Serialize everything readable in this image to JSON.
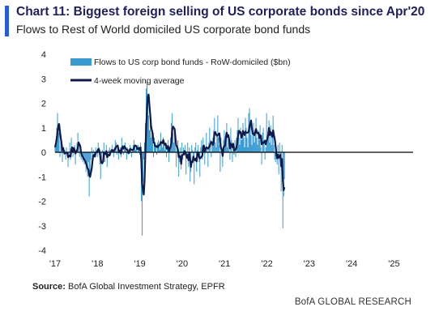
{
  "colors": {
    "accent": "#2a5bd7",
    "bar": "#3a9bd1",
    "line": "#0f1a4a",
    "axis": "#000000"
  },
  "header": {
    "title": "Chart 11: Biggest foreign selling of US corporate bonds since Apr'20",
    "subtitle": "Flows to Rest of World domiciled US corporate bond funds"
  },
  "footer": {
    "source_label": "Source:",
    "source_text": " BofA Global Investment Strategy, EPFR",
    "brand": "BofA GLOBAL RESEARCH"
  },
  "chart_data": {
    "type": "bar",
    "ylim": [
      -4,
      4
    ],
    "yticks": [
      -4,
      -3,
      -2,
      -1,
      0,
      1,
      2,
      3,
      4
    ],
    "xlim": [
      2017.0,
      2025.45
    ],
    "xticks": [
      {
        "value": 2017,
        "label": "'17"
      },
      {
        "value": 2018,
        "label": "'18"
      },
      {
        "value": 2019,
        "label": "'19"
      },
      {
        "value": 2020,
        "label": "'20"
      },
      {
        "value": 2021,
        "label": "'21"
      },
      {
        "value": 2022,
        "label": "'22"
      },
      {
        "value": 2023,
        "label": "'23"
      },
      {
        "value": 2024,
        "label": "'24"
      },
      {
        "value": 2025,
        "label": "'25"
      }
    ],
    "legend": {
      "placement": "top-left"
    },
    "series": [
      {
        "name": "Flows to US corp bond funds - RoW-domiciled ($bn)",
        "kind": "bar",
        "x_start": 2017.0,
        "x_step": 0.0192,
        "values": [
          0.2,
          0.5,
          1.0,
          1.6,
          1.2,
          0.8,
          -0.2,
          0.6,
          0.3,
          -0.4,
          0.2,
          -0.1,
          0.1,
          -0.3,
          0.2,
          -0.1,
          -0.6,
          -0.2,
          0.4,
          -0.3,
          0.6,
          0.1,
          -0.2,
          0.2,
          0.3,
          -0.5,
          0.1,
          0.4,
          0.8,
          0.3,
          -0.2,
          0.1,
          -0.3,
          -0.1,
          -0.4,
          -0.2,
          -0.5,
          -0.3,
          -0.8,
          -0.6,
          -1.0,
          -0.4,
          -1.8,
          -0.8,
          -0.3,
          0.2,
          -0.5,
          0.1,
          -0.2,
          -0.1,
          0.2,
          0.1,
          -0.2,
          0.4,
          0.2,
          -0.5,
          -1.1,
          -0.3,
          0.1,
          -0.2,
          0.4,
          -0.4,
          -0.1,
          0.3,
          -0.6,
          -0.2,
          0.1,
          0.2,
          -0.1,
          0.0,
          0.3,
          0.1,
          -0.2,
          0.2,
          0.5,
          0.4,
          -0.1,
          0.3,
          -0.3,
          0.1,
          0.2,
          -0.2,
          0.6,
          0.3,
          -0.1,
          0.2,
          0.4,
          0.1,
          -0.3,
          0.2,
          -0.1,
          0.1,
          0.3,
          0.2,
          -0.2,
          0.1,
          0.3,
          0.5,
          0.2,
          0.1,
          0.2,
          0.0,
          0.3,
          0.2,
          -0.1,
          0.4,
          -2.0,
          -3.4,
          -1.2,
          -0.3,
          0.4,
          1.2,
          2.6,
          2.9,
          2.4,
          1.5,
          0.9,
          1.3,
          0.6,
          0.8,
          0.4,
          -0.2,
          0.6,
          0.2,
          0.3,
          -0.1,
          0.4,
          0.5,
          0.3,
          0.1,
          0.8,
          0.4,
          0.2,
          0.6,
          0.3,
          0.1,
          0.4,
          -0.2,
          0.3,
          0.5,
          -0.4,
          0.2,
          0.6,
          1.2,
          1.6,
          0.8,
          0.4,
          1.0,
          0.2,
          -0.6,
          0.3,
          0.5,
          -1.0,
          -0.4,
          0.2,
          -0.7,
          0.4,
          -0.3,
          0.2,
          -0.1,
          0.3,
          -0.9,
          -0.2,
          0.4,
          -0.6,
          0.2,
          -1.2,
          -0.8,
          0.3,
          0.1,
          -0.3,
          -1.3,
          0.2,
          0.4,
          -0.8,
          0.1,
          0.3,
          -0.4,
          -1.0,
          0.2,
          0.5,
          -0.3,
          0.6,
          0.3,
          -0.5,
          0.2,
          0.8,
          0.2,
          -0.6,
          0.4,
          1.0,
          0.5,
          -0.2,
          0.3,
          0.6,
          0.9,
          1.4,
          0.4,
          0.2,
          0.7,
          1.5,
          0.6,
          0.3,
          -0.8,
          0.6,
          0.2,
          -0.6,
          0.5,
          0.9,
          0.3,
          0.8,
          1.2,
          0.2,
          0.6,
          0.1,
          -0.3,
          1.0,
          0.5,
          -0.4,
          0.3,
          -0.1,
          0.5,
          -0.2,
          0.6,
          0.9,
          1.4,
          0.6,
          0.3,
          1.0,
          0.5,
          0.8,
          1.2,
          0.6,
          0.2,
          1.4,
          1.0,
          0.6,
          0.2,
          1.6,
          1.8,
          1.1,
          0.7,
          0.3,
          0.9,
          1.2,
          0.4,
          0.8,
          1.4,
          0.6,
          0.3,
          0.9,
          0.5,
          1.1,
          0.2,
          -0.5,
          0.8,
          1.0,
          0.4,
          -0.3,
          0.2,
          1.6,
          0.6,
          0.5,
          1.3,
          0.4,
          1.1,
          0.3,
          0.7,
          1.5,
          0.3,
          -0.3,
          -0.4,
          0.2,
          -0.5,
          0.3,
          -0.9,
          0.4,
          -0.2,
          -1.6,
          0.3,
          -3.1,
          -1.8,
          -1.1
        ]
      },
      {
        "name": "4-week moving average",
        "kind": "line"
      }
    ]
  }
}
